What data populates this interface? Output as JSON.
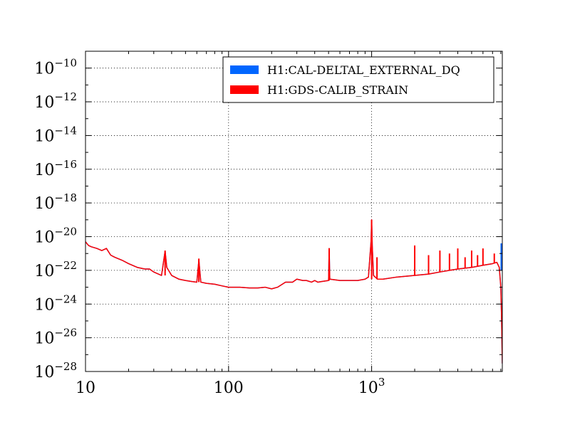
{
  "chart_data": {
    "type": "line",
    "title": "",
    "xlabel": "",
    "ylabel": "",
    "xscale": "log",
    "yscale": "log",
    "xlim": [
      10,
      8192
    ],
    "ylim": [
      1e-28,
      1e-09
    ],
    "grid": true,
    "legend_position": "top-right",
    "x_ticks": [
      {
        "value": 10,
        "label": "10"
      },
      {
        "value": 100,
        "label": "100"
      },
      {
        "value": 1000,
        "label": "10",
        "exp": "3"
      }
    ],
    "y_ticks": [
      {
        "value": 1e-10,
        "mant": "10",
        "exp": "−10"
      },
      {
        "value": 1e-12,
        "mant": "10",
        "exp": "−12"
      },
      {
        "value": 1e-14,
        "mant": "10",
        "exp": "−14"
      },
      {
        "value": 1e-16,
        "mant": "10",
        "exp": "−16"
      },
      {
        "value": 1e-18,
        "mant": "10",
        "exp": "−18"
      },
      {
        "value": 1e-20,
        "mant": "10",
        "exp": "−20"
      },
      {
        "value": 1e-22,
        "mant": "10",
        "exp": "−22"
      },
      {
        "value": 1e-24,
        "mant": "10",
        "exp": "−24"
      },
      {
        "value": 1e-26,
        "mant": "10",
        "exp": "−26"
      },
      {
        "value": 1e-28,
        "mant": "10",
        "exp": "−28"
      }
    ],
    "series": [
      {
        "name": "H1:CAL-DELTAL_EXTERNAL_DQ",
        "color": "#0066ff",
        "points": [
          [
            10,
            5e-21
          ],
          [
            10.5,
            3e-21
          ],
          [
            11,
            2.5e-21
          ],
          [
            12,
            2e-21
          ],
          [
            13,
            1.5e-21
          ],
          [
            14,
            2e-21
          ],
          [
            15,
            8e-22
          ],
          [
            16,
            6e-22
          ],
          [
            18,
            4e-22
          ],
          [
            20,
            2.5e-22
          ],
          [
            23,
            1.5e-22
          ],
          [
            26,
            1.2e-22
          ],
          [
            28,
            1.2e-22
          ],
          [
            30,
            8e-23
          ],
          [
            34,
            5e-23
          ],
          [
            36,
            1.4e-21
          ],
          [
            37,
            1.5e-22
          ],
          [
            40,
            5e-23
          ],
          [
            45,
            3e-23
          ],
          [
            50,
            2.5e-23
          ],
          [
            55,
            2.2e-23
          ],
          [
            60,
            2e-23
          ],
          [
            62,
            4e-22
          ],
          [
            64,
            2e-23
          ],
          [
            70,
            1.7e-23
          ],
          [
            80,
            1.5e-23
          ],
          [
            90,
            1.2e-23
          ],
          [
            100,
            1e-23
          ],
          [
            110,
            1e-23
          ],
          [
            120,
            1e-23
          ],
          [
            140,
            9e-24
          ],
          [
            160,
            9e-24
          ],
          [
            180,
            1e-23
          ],
          [
            200,
            8e-24
          ],
          [
            220,
            1e-23
          ],
          [
            250,
            2e-23
          ],
          [
            280,
            2e-23
          ],
          [
            300,
            3e-23
          ],
          [
            330,
            2.5e-23
          ],
          [
            350,
            2.5e-23
          ],
          [
            380,
            2e-23
          ],
          [
            400,
            2.5e-23
          ],
          [
            420,
            2e-23
          ],
          [
            450,
            2.2e-23
          ],
          [
            500,
            2.5e-23
          ],
          [
            505,
            2e-21
          ],
          [
            510,
            3e-23
          ],
          [
            600,
            2.5e-23
          ],
          [
            700,
            2.5e-23
          ],
          [
            800,
            2.5e-23
          ],
          [
            900,
            3e-23
          ],
          [
            950,
            4e-23
          ],
          [
            990,
            5e-21
          ],
          [
            1000,
            1e-19
          ],
          [
            1010,
            3e-21
          ],
          [
            1030,
            5e-23
          ],
          [
            1100,
            3e-23
          ],
          [
            1200,
            3e-23
          ],
          [
            1500,
            4e-23
          ],
          [
            2000,
            5e-23
          ],
          [
            2500,
            6e-23
          ],
          [
            3000,
            8e-23
          ],
          [
            3500,
            1e-22
          ],
          [
            4000,
            1.2e-22
          ],
          [
            5000,
            1.5e-22
          ],
          [
            6000,
            2e-22
          ],
          [
            7000,
            2.5e-22
          ],
          [
            7500,
            3e-22
          ],
          [
            7800,
            1.5e-22
          ],
          [
            8000,
            1e-23
          ],
          [
            8100,
            1e-25
          ],
          [
            8192,
            3e-28
          ]
        ]
      },
      {
        "name": "H1:GDS-CALIB_STRAIN",
        "color": "#ff0000",
        "points": [
          [
            10,
            5e-21
          ],
          [
            10.5,
            3e-21
          ],
          [
            11,
            2.5e-21
          ],
          [
            12,
            2e-21
          ],
          [
            13,
            1.5e-21
          ],
          [
            14,
            2e-21
          ],
          [
            15,
            8e-22
          ],
          [
            16,
            6e-22
          ],
          [
            18,
            4e-22
          ],
          [
            20,
            2.5e-22
          ],
          [
            23,
            1.5e-22
          ],
          [
            26,
            1.2e-22
          ],
          [
            28,
            1.2e-22
          ],
          [
            30,
            8e-23
          ],
          [
            34,
            5e-23
          ],
          [
            36,
            1.4e-21
          ],
          [
            37,
            1.5e-22
          ],
          [
            40,
            5e-23
          ],
          [
            45,
            3e-23
          ],
          [
            50,
            2.5e-23
          ],
          [
            55,
            2.2e-23
          ],
          [
            60,
            2e-23
          ],
          [
            62,
            4e-22
          ],
          [
            64,
            2e-23
          ],
          [
            70,
            1.7e-23
          ],
          [
            80,
            1.5e-23
          ],
          [
            90,
            1.2e-23
          ],
          [
            100,
            1e-23
          ],
          [
            110,
            1e-23
          ],
          [
            120,
            1e-23
          ],
          [
            140,
            9e-24
          ],
          [
            160,
            9e-24
          ],
          [
            180,
            1e-23
          ],
          [
            200,
            8e-24
          ],
          [
            220,
            1e-23
          ],
          [
            250,
            2e-23
          ],
          [
            280,
            2e-23
          ],
          [
            300,
            3e-23
          ],
          [
            330,
            2.5e-23
          ],
          [
            350,
            2.5e-23
          ],
          [
            380,
            2e-23
          ],
          [
            400,
            2.5e-23
          ],
          [
            420,
            2e-23
          ],
          [
            450,
            2.2e-23
          ],
          [
            500,
            2.5e-23
          ],
          [
            505,
            2e-21
          ],
          [
            510,
            3e-23
          ],
          [
            600,
            2.5e-23
          ],
          [
            700,
            2.5e-23
          ],
          [
            800,
            2.5e-23
          ],
          [
            900,
            3e-23
          ],
          [
            950,
            4e-23
          ],
          [
            990,
            5e-21
          ],
          [
            1000,
            1e-19
          ],
          [
            1010,
            3e-21
          ],
          [
            1030,
            5e-23
          ],
          [
            1100,
            3e-23
          ],
          [
            1200,
            3e-23
          ],
          [
            1500,
            4e-23
          ],
          [
            2000,
            5e-23
          ],
          [
            2500,
            6e-23
          ],
          [
            3000,
            8e-23
          ],
          [
            3500,
            1e-22
          ],
          [
            4000,
            1.2e-22
          ],
          [
            5000,
            1.5e-22
          ],
          [
            6000,
            2e-22
          ],
          [
            7000,
            2.5e-22
          ],
          [
            7500,
            3e-22
          ],
          [
            7800,
            1.5e-22
          ],
          [
            8000,
            1e-23
          ],
          [
            8100,
            1e-25
          ],
          [
            8192,
            3e-28
          ]
        ]
      }
    ],
    "lines": [
      {
        "x": 36,
        "y1": 1.5e-21,
        "y2": 5e-23,
        "series": 1
      },
      {
        "x": 62,
        "y1": 5e-22,
        "y2": 2e-23,
        "series": 1
      },
      {
        "x": 505,
        "y1": 2e-21,
        "y2": 2.5e-23,
        "series": 1
      },
      {
        "x": 1000,
        "y1": 1e-19,
        "y2": 3e-23,
        "series": 1
      },
      {
        "x": 1090,
        "y1": 6e-22,
        "y2": 3e-23,
        "series": 1
      },
      {
        "x": 2000,
        "y1": 3e-21,
        "y2": 5e-23,
        "series": 1
      },
      {
        "x": 2500,
        "y1": 8e-22,
        "y2": 6e-23,
        "series": 1
      },
      {
        "x": 3000,
        "y1": 1.5e-21,
        "y2": 8e-23,
        "series": 1
      },
      {
        "x": 3500,
        "y1": 1e-21,
        "y2": 1e-22,
        "series": 1
      },
      {
        "x": 4000,
        "y1": 2e-21,
        "y2": 1.2e-22,
        "series": 1
      },
      {
        "x": 4500,
        "y1": 6e-22,
        "y2": 1.3e-22,
        "series": 1
      },
      {
        "x": 5000,
        "y1": 1.5e-21,
        "y2": 1.5e-22,
        "series": 1
      },
      {
        "x": 5500,
        "y1": 8e-22,
        "y2": 1.7e-22,
        "series": 1
      },
      {
        "x": 6000,
        "y1": 2e-21,
        "y2": 2e-22,
        "series": 1
      },
      {
        "x": 7200,
        "y1": 1e-21,
        "y2": 2.5e-22,
        "series": 1
      },
      {
        "x": 8050,
        "y1": 4e-21,
        "y2": 1e-22,
        "series": 0
      }
    ]
  }
}
